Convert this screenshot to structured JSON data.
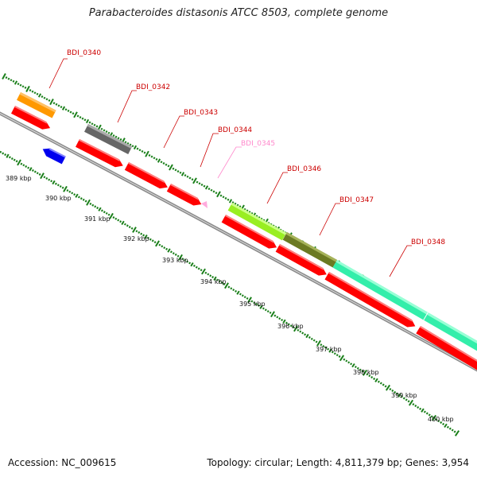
{
  "title": "Parabacteroides distasonis ATCC 8503, complete genome",
  "accession": "Accession: NC_009615",
  "summary": "Topology: circular; Length: 4,811,379 bp; Genes: 3,954",
  "colors": {
    "backbone": "#8a8a8a",
    "tick": "#1a7f1a",
    "label_red": "#cc0000",
    "label_pink": "#ff88cc",
    "cds": "#ff0000",
    "orange": "#ff9900",
    "gray": "#666666",
    "blue": "#0000ee",
    "pink": "#ff99cc",
    "lime": "#99ee22",
    "olive": "#6b7a22",
    "teal": "#33eeaa"
  },
  "gene_labels": [
    {
      "text": "BDI_0340",
      "color": "red"
    },
    {
      "text": "BDI_0342",
      "color": "red"
    },
    {
      "text": "BDI_0343",
      "color": "red"
    },
    {
      "text": "BDI_0344",
      "color": "red"
    },
    {
      "text": "BDI_0345",
      "color": "pink"
    },
    {
      "text": "BDI_0346",
      "color": "red"
    },
    {
      "text": "BDI_0347",
      "color": "red"
    },
    {
      "text": "BDI_0348",
      "color": "red"
    }
  ],
  "tick_labels": [
    "389 kbp",
    "390 kbp",
    "391 kbp",
    "392 kbp",
    "393 kbp",
    "394 kbp",
    "395 kbp",
    "396 kbp",
    "397 kbp",
    "398 kbp",
    "399 kbp",
    "400 kbp"
  ]
}
